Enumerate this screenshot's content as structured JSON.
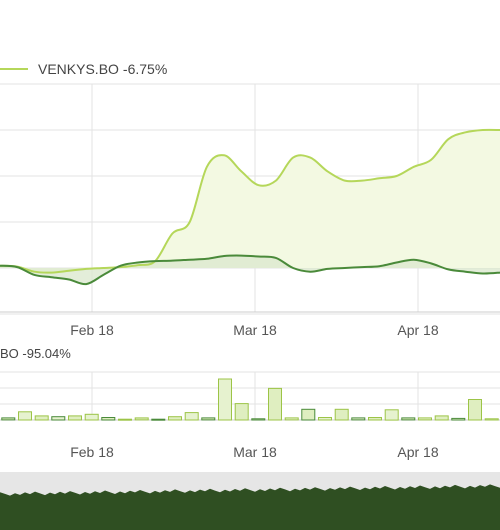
{
  "legend": {
    "primary_name": "VENKYS.BO",
    "primary_change": "-6.75%",
    "volume_label": "BO -95.04%"
  },
  "colors": {
    "primary_line": "#b5d75a",
    "primary_fill": "#f3f9e2",
    "compare_line": "#4a8a3a",
    "compare_fill": "#dce8d0",
    "grid": "#e3e3e3",
    "navigator": "#2f4f22"
  },
  "chart_data": [
    {
      "type": "area",
      "x_tick_labels": [
        "Feb 18",
        "Mar 18",
        "Apr 18"
      ],
      "ylim": [
        -40,
        40
      ],
      "y_gridlines": [
        -10,
        0,
        10,
        20,
        30
      ],
      "grid": true,
      "legend_position": "top-left",
      "series": [
        {
          "name": "VENKYS.BO",
          "change": "-6.75%",
          "values": [
            0.5,
            0.3,
            -0.8,
            -1.0,
            -0.6,
            -0.2,
            0.0,
            0.2,
            0.6,
            1.5,
            7.5,
            10.0,
            22.0,
            24.5,
            21.0,
            18.0,
            19.0,
            24.0,
            24.0,
            21.0,
            19.0,
            19.0,
            19.5,
            20.0,
            22.0,
            23.5,
            28.0,
            29.5,
            30.0,
            30.0
          ]
        },
        {
          "name": "",
          "values": [
            0.5,
            0.2,
            -1.5,
            -2.0,
            -2.5,
            -3.5,
            -1.5,
            0.5,
            1.2,
            1.5,
            1.6,
            1.8,
            2.0,
            2.6,
            2.7,
            2.5,
            2.2,
            0.0,
            -0.8,
            -0.2,
            0.0,
            0.2,
            0.4,
            1.2,
            1.8,
            1.0,
            -0.3,
            -0.8,
            -1.2,
            -1.0
          ]
        }
      ]
    },
    {
      "type": "bar",
      "x_tick_labels": [
        "Feb 18",
        "Mar 18",
        "Apr 18"
      ],
      "ylim": [
        0,
        100
      ],
      "grid": true,
      "series": [
        {
          "name": "",
          "change": "-95.04%",
          "values": [
            5,
            20,
            10,
            8,
            10,
            14,
            6,
            2,
            5,
            2,
            8,
            18,
            5,
            100,
            40,
            3,
            77,
            5,
            26,
            6,
            26,
            5,
            6,
            25,
            5,
            5,
            10,
            4,
            50,
            3
          ]
        }
      ]
    }
  ]
}
